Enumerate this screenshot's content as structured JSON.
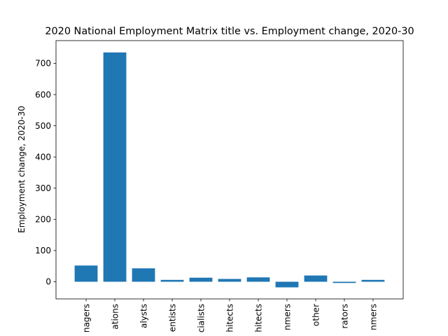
{
  "chart_data": {
    "type": "bar",
    "title": "2020 National Employment Matrix title vs. Employment change, 2020-30",
    "xlabel": "",
    "ylabel": "Employment change, 2020-30",
    "categories": [
      "nagers",
      "ations",
      "alysts",
      "entists",
      "cialists",
      "hitects",
      "hitects",
      "nmers",
      "other",
      "rators",
      "nmers"
    ],
    "values": [
      52,
      735,
      43,
      6,
      13,
      9,
      14,
      -18,
      20,
      -4,
      6
    ],
    "yticks": [
      0,
      100,
      200,
      300,
      400,
      500,
      600,
      700
    ],
    "ylim": [
      -55,
      773
    ],
    "grid": false,
    "bar_color": "#1f77b4"
  }
}
